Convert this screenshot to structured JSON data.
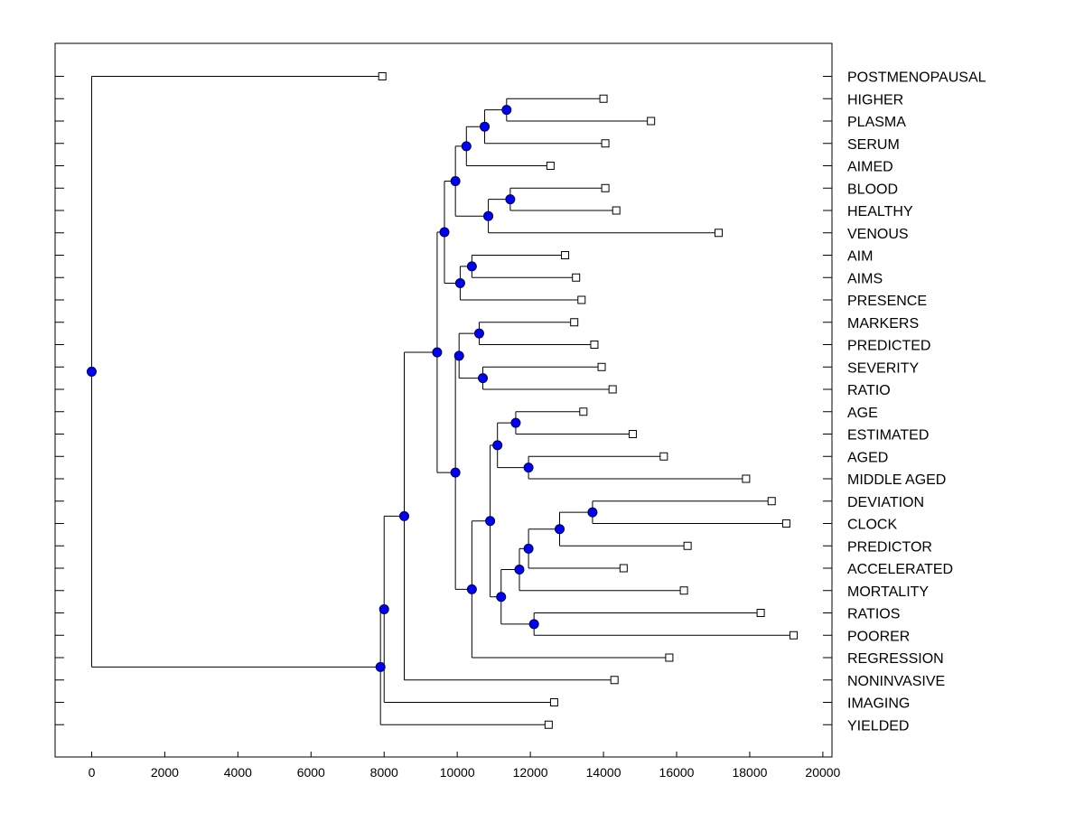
{
  "chart_data": {
    "type": "dendrogram",
    "orientation": "horizontal",
    "x_range": [
      -1000,
      20250
    ],
    "x_ticks": [
      0,
      2000,
      4000,
      6000,
      8000,
      10000,
      12000,
      14000,
      16000,
      18000,
      20000
    ],
    "x_tick_labels": [
      "0",
      "2000",
      "4000",
      "6000",
      "8000",
      "10000",
      "12000",
      "14000",
      "16000",
      "18000",
      "20000"
    ],
    "leaf_order": [
      "POSTMENOPAUSAL",
      "HIGHER",
      "PLASMA",
      "SERUM",
      "AIMED",
      "BLOOD",
      "HEALTHY",
      "VENOUS",
      "AIM",
      "AIMS",
      "PRESENCE",
      "MARKERS",
      "PREDICTED",
      "SEVERITY",
      "RATIO",
      "AGE",
      "ESTIMATED",
      "AGED",
      "MIDDLE AGED",
      "DEVIATION",
      "CLOCK",
      "PREDICTOR",
      "ACCELERATED",
      "MORTALITY",
      "RATIOS",
      "POORER",
      "REGRESSION",
      "NONINVASIVE",
      "IMAGING",
      "YIELDED"
    ],
    "leaf_values": {
      "POSTMENOPAUSAL": 7950,
      "HIGHER": 14000,
      "PLASMA": 15300,
      "SERUM": 14050,
      "AIMED": 12550,
      "BLOOD": 14050,
      "HEALTHY": 14350,
      "VENOUS": 17150,
      "AIM": 12950,
      "AIMS": 13250,
      "PRESENCE": 13400,
      "MARKERS": 13200,
      "PREDICTED": 13750,
      "SEVERITY": 13950,
      "RATIO": 14250,
      "AGE": 13450,
      "ESTIMATED": 14800,
      "AGED": 15650,
      "MIDDLE AGED": 17900,
      "DEVIATION": 18600,
      "CLOCK": 19000,
      "PREDICTOR": 16300,
      "ACCELERATED": 14550,
      "MORTALITY": 16200,
      "RATIOS": 18300,
      "POORER": 19200,
      "REGRESSION": 15800,
      "NONINVASIVE": 14300,
      "IMAGING": 12650,
      "YIELDED": 12500
    },
    "merges": [
      {
        "id": "m1",
        "children": [
          "HIGHER",
          "PLASMA"
        ],
        "x": 11350
      },
      {
        "id": "m2",
        "children": [
          "m1",
          "SERUM"
        ],
        "x": 10750
      },
      {
        "id": "m3",
        "children": [
          "m2",
          "AIMED"
        ],
        "x": 10250
      },
      {
        "id": "m4",
        "children": [
          "BLOOD",
          "HEALTHY"
        ],
        "x": 11450
      },
      {
        "id": "m5",
        "children": [
          "m4",
          "VENOUS"
        ],
        "x": 10850
      },
      {
        "id": "m6",
        "children": [
          "m3",
          "m5"
        ],
        "x": 9950
      },
      {
        "id": "m7",
        "children": [
          "AIM",
          "AIMS"
        ],
        "x": 10400
      },
      {
        "id": "m8",
        "children": [
          "m7",
          "PRESENCE"
        ],
        "x": 10080
      },
      {
        "id": "m9",
        "children": [
          "m6",
          "m8"
        ],
        "x": 9650
      },
      {
        "id": "m10",
        "children": [
          "MARKERS",
          "PREDICTED"
        ],
        "x": 10600
      },
      {
        "id": "m11",
        "children": [
          "SEVERITY",
          "RATIO"
        ],
        "x": 10700
      },
      {
        "id": "m12",
        "children": [
          "m10",
          "m11"
        ],
        "x": 10050
      },
      {
        "id": "m13",
        "children": [
          "AGE",
          "ESTIMATED"
        ],
        "x": 11600
      },
      {
        "id": "m14",
        "children": [
          "AGED",
          "MIDDLE AGED"
        ],
        "x": 11950
      },
      {
        "id": "m15",
        "children": [
          "m13",
          "m14"
        ],
        "x": 11100
      },
      {
        "id": "m16",
        "children": [
          "DEVIATION",
          "CLOCK"
        ],
        "x": 13700
      },
      {
        "id": "m17",
        "children": [
          "m16",
          "PREDICTOR"
        ],
        "x": 12800
      },
      {
        "id": "m18",
        "children": [
          "m17",
          "ACCELERATED"
        ],
        "x": 11950
      },
      {
        "id": "m19",
        "children": [
          "m18",
          "MORTALITY"
        ],
        "x": 11700
      },
      {
        "id": "m20",
        "children": [
          "RATIOS",
          "POORER"
        ],
        "x": 12100
      },
      {
        "id": "m21",
        "children": [
          "m19",
          "m20"
        ],
        "x": 11200
      },
      {
        "id": "m22",
        "children": [
          "m15",
          "m21"
        ],
        "x": 10900
      },
      {
        "id": "m23",
        "children": [
          "m22",
          "REGRESSION"
        ],
        "x": 10400
      },
      {
        "id": "m24",
        "children": [
          "m12",
          "m23"
        ],
        "x": 9950
      },
      {
        "id": "m25",
        "children": [
          "m9",
          "m24"
        ],
        "x": 9450
      },
      {
        "id": "m26",
        "children": [
          "m25",
          "NONINVASIVE"
        ],
        "x": 8550
      },
      {
        "id": "m27",
        "children": [
          "m26",
          "IMAGING"
        ],
        "x": 8000
      },
      {
        "id": "m28",
        "children": [
          "m27",
          "YIELDED"
        ],
        "x": 7900
      },
      {
        "id": "m29",
        "children": [
          "POSTMENOPAUSAL",
          "m28"
        ],
        "x": 0
      }
    ],
    "colors": {
      "node_fill": "#0000ff",
      "node_stroke": "#000040",
      "leaf_fill": "#ffffff",
      "leaf_stroke": "#000000",
      "line": "#000000",
      "frame": "#000000"
    },
    "title": "",
    "xlabel": "",
    "ylabel": ""
  }
}
